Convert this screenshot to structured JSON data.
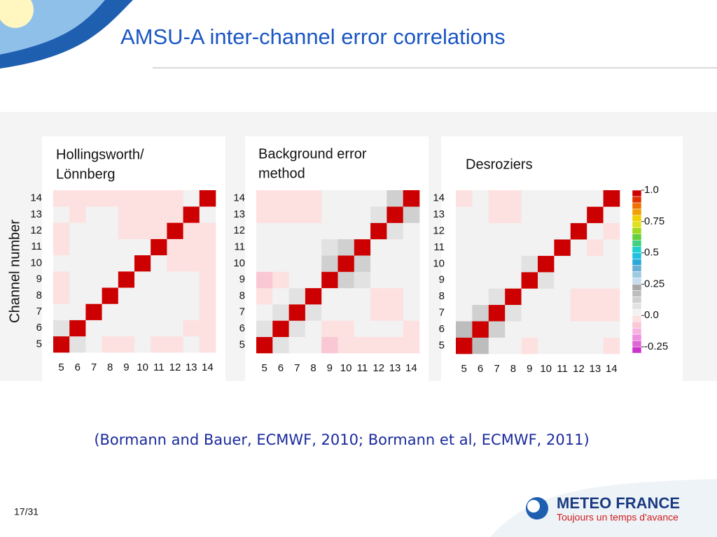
{
  "title": "AMSU-A inter-channel error correlations",
  "citation": "(Bormann and Bauer, ECMWF, 2010; Bormann et al, ECMWF, 2011)",
  "page_number": "17/31",
  "logo": {
    "name": "METEO FRANCE",
    "tagline": "Toujours un temps d'avance"
  },
  "chart_data": [
    {
      "type": "heatmap",
      "title": [
        "Hollingsworth/",
        "Lönnberg"
      ],
      "y_label": "Channel number",
      "categories": [
        "5",
        "6",
        "7",
        "8",
        "9",
        "10",
        "11",
        "12",
        "13",
        "14"
      ],
      "z": [
        [
          1,
          0.05,
          0,
          -0.05,
          -0.05,
          0,
          -0.05,
          -0.05,
          0,
          -0.05
        ],
        [
          0.05,
          1,
          0,
          0,
          0,
          0,
          0,
          0,
          -0.05,
          -0.05
        ],
        [
          0,
          0,
          1,
          0,
          0,
          0,
          0,
          0,
          0,
          -0.05
        ],
        [
          -0.05,
          0,
          0,
          1,
          0,
          0,
          0,
          0,
          0,
          -0.05
        ],
        [
          -0.05,
          0,
          0,
          0,
          1,
          0,
          0,
          0,
          0,
          -0.05
        ],
        [
          0,
          0,
          0,
          0,
          0,
          1,
          0,
          -0.05,
          -0.05,
          -0.05
        ],
        [
          -0.05,
          0,
          0,
          0,
          0,
          0,
          1,
          -0.05,
          -0.05,
          -0.05
        ],
        [
          -0.05,
          0,
          0,
          0,
          -0.05,
          -0.05,
          -0.05,
          1,
          -0.05,
          -0.05
        ],
        [
          0,
          -0.05,
          0,
          0,
          -0.05,
          -0.05,
          -0.05,
          -0.05,
          1,
          0
        ],
        [
          -0.05,
          -0.05,
          -0.05,
          -0.05,
          -0.05,
          -0.05,
          -0.05,
          -0.05,
          0,
          1
        ]
      ]
    },
    {
      "type": "heatmap",
      "title": [
        "Background error",
        "method"
      ],
      "categories": [
        "5",
        "6",
        "7",
        "8",
        "9",
        "10",
        "11",
        "12",
        "13",
        "14"
      ],
      "z": [
        [
          1,
          0.05,
          0,
          0,
          -0.1,
          -0.05,
          -0.05,
          -0.05,
          -0.05,
          -0.05
        ],
        [
          0.05,
          1,
          0.05,
          0,
          -0.05,
          -0.05,
          0,
          0,
          0,
          -0.05
        ],
        [
          0,
          0.05,
          1,
          0.05,
          0,
          0,
          0,
          -0.05,
          -0.05,
          0
        ],
        [
          -0.05,
          0,
          0.05,
          1,
          0,
          0,
          0,
          -0.05,
          -0.05,
          0
        ],
        [
          -0.1,
          -0.05,
          0,
          0,
          1,
          0.1,
          0.05,
          0,
          0,
          0
        ],
        [
          0,
          0,
          0,
          0,
          0.1,
          1,
          0.1,
          0,
          0,
          0
        ],
        [
          0,
          0,
          0,
          0,
          0.05,
          0.1,
          1,
          0,
          0,
          0
        ],
        [
          0,
          0,
          0,
          0,
          0,
          0,
          0,
          1,
          0.05,
          0
        ],
        [
          -0.05,
          -0.05,
          -0.05,
          -0.05,
          0,
          0,
          0,
          0.05,
          1,
          0.1
        ],
        [
          -0.05,
          -0.05,
          -0.05,
          -0.05,
          0,
          0,
          0,
          0,
          0.1,
          1
        ]
      ]
    },
    {
      "type": "heatmap",
      "title": [
        "Desroziers"
      ],
      "categories": [
        "5",
        "6",
        "7",
        "8",
        "9",
        "10",
        "11",
        "12",
        "13",
        "14"
      ],
      "z": [
        [
          1,
          0.15,
          0,
          0,
          -0.05,
          0,
          0,
          0,
          0,
          -0.05
        ],
        [
          0.15,
          1,
          0.1,
          0,
          0,
          0,
          0,
          0,
          0,
          0
        ],
        [
          0,
          0.1,
          1,
          0.05,
          0,
          0,
          0,
          -0.05,
          -0.05,
          -0.05
        ],
        [
          0,
          0,
          0.05,
          1,
          0,
          0,
          0,
          -0.05,
          -0.05,
          -0.05
        ],
        [
          0,
          0,
          0,
          0,
          1,
          0.05,
          0,
          0,
          0,
          0
        ],
        [
          0,
          0,
          0,
          0,
          0.05,
          1,
          0,
          0,
          0,
          0
        ],
        [
          0,
          0,
          0,
          0,
          0,
          0,
          1,
          0,
          -0.05,
          0
        ],
        [
          0,
          0,
          0,
          0,
          0,
          0,
          0,
          1,
          0,
          -0.05
        ],
        [
          0,
          0,
          -0.05,
          -0.05,
          0,
          0,
          0,
          0,
          1,
          0
        ],
        [
          -0.05,
          0,
          -0.05,
          -0.05,
          0,
          0,
          0,
          0,
          0,
          1
        ]
      ],
      "colorbar": {
        "zlim": [
          -0.3,
          1.0
        ],
        "ticks": [
          {
            "value": 1,
            "label": "1.0"
          },
          0.75,
          0.5,
          0.25,
          {
            "value": 0,
            "label": "0.0"
          },
          -0.25
        ],
        "colors": [
          "#cc33cc",
          "#e066d6",
          "#f08ee0",
          "#f7b3e0",
          "#f9c8d4",
          "#fde0e0",
          "#f2f2f2",
          "#e2e2e2",
          "#d0d0d0",
          "#bdbdbd",
          "#a8a8a8",
          "#c6dbef",
          "#9ecae1",
          "#6baed6",
          "#2ca8d8",
          "#20c0e0",
          "#20d0d0",
          "#40d080",
          "#60d040",
          "#a0d820",
          "#e0e020",
          "#f0d000",
          "#f0a000",
          "#f07000",
          "#e03000",
          "#cc0000"
        ]
      }
    }
  ]
}
